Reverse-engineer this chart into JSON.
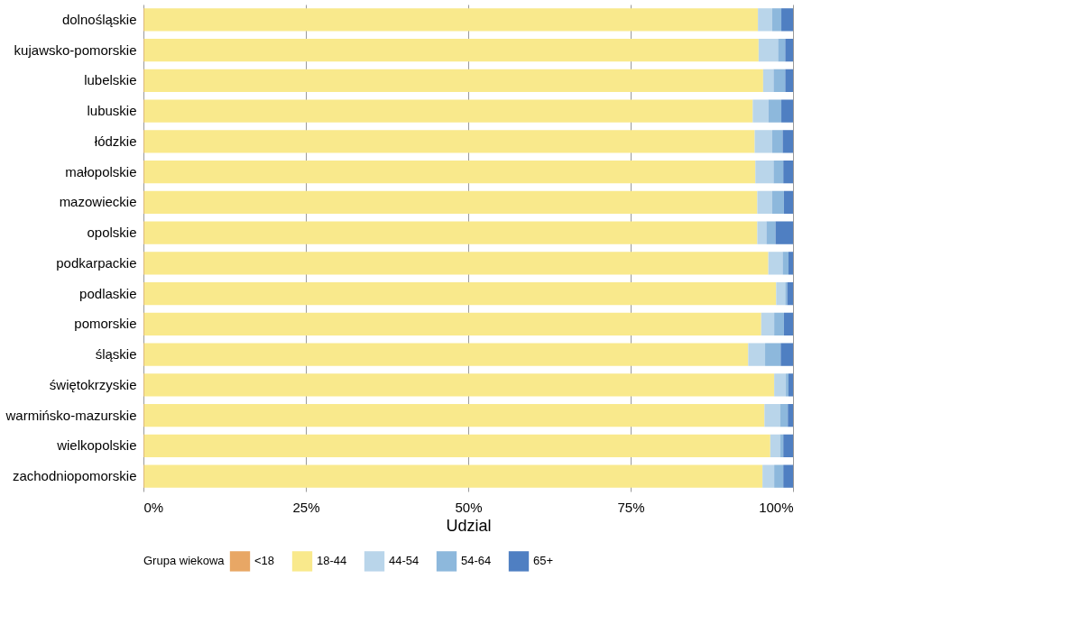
{
  "chart_data": {
    "type": "bar",
    "orientation": "horizontal",
    "stacked": true,
    "categories": [
      "dolnośląskie",
      "kujawsko-pomorskie",
      "lubelskie",
      "lubuskie",
      "łódzkie",
      "małopolskie",
      "mazowieckie",
      "opolskie",
      "podkarpackie",
      "podlaskie",
      "pomorskie",
      "śląskie",
      "świętokrzyskie",
      "warmińsko-mazurskie",
      "wielkopolskie",
      "zachodniopomorskie"
    ],
    "series": [
      {
        "name": "<18",
        "color": "#e8a765",
        "values": [
          0.1,
          0.1,
          0.1,
          0.1,
          0.1,
          0.1,
          0.1,
          0.1,
          0.1,
          0.1,
          0.1,
          0.1,
          0.1,
          0.1,
          0.1,
          0.1
        ]
      },
      {
        "name": "18-44",
        "color": "#f9e98c",
        "values": [
          94.5,
          94.6,
          95.3,
          93.7,
          94.0,
          94.1,
          94.4,
          94.4,
          96.1,
          97.3,
          95.0,
          93.0,
          97.0,
          95.5,
          96.4,
          95.2
        ]
      },
      {
        "name": "44-54",
        "color": "#b9d5ea",
        "values": [
          2.2,
          3.0,
          1.6,
          2.4,
          2.7,
          2.8,
          2.3,
          1.4,
          2.2,
          1.4,
          2.0,
          2.6,
          1.8,
          2.4,
          1.5,
          1.8
        ]
      },
      {
        "name": "54-64",
        "color": "#8db8dc",
        "values": [
          1.4,
          1.1,
          1.8,
          2.0,
          1.6,
          1.5,
          1.8,
          1.4,
          0.9,
          0.3,
          1.5,
          2.4,
          0.4,
          1.2,
          0.5,
          1.4
        ]
      },
      {
        "name": "65+",
        "color": "#4f7fc2",
        "values": [
          1.8,
          1.2,
          1.2,
          1.8,
          1.6,
          1.5,
          1.4,
          2.7,
          0.7,
          0.9,
          1.4,
          1.9,
          0.7,
          0.8,
          1.5,
          1.5
        ]
      }
    ],
    "xlabel": "Udzial",
    "legend_title": "Grupa wiekowa",
    "legend": "bottom",
    "grid": "x",
    "xlim": [
      0,
      100
    ],
    "xticks": [
      {
        "value": 0,
        "label": "0%"
      },
      {
        "value": 25,
        "label": "25%"
      },
      {
        "value": 50,
        "label": "50%"
      },
      {
        "value": 75,
        "label": "75%"
      },
      {
        "value": 100,
        "label": "100%"
      }
    ]
  }
}
